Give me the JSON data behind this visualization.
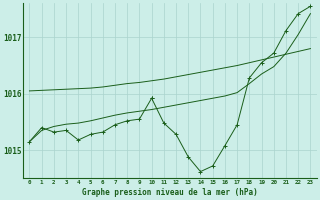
{
  "bg_color": "#cceee8",
  "grid_color": "#aad4ce",
  "line_color": "#1a5e1a",
  "title": "Graphe pression niveau de la mer (hPa)",
  "ylabel_values": [
    1015,
    1016,
    1017
  ],
  "xlim": [
    -0.5,
    23.5
  ],
  "ylim": [
    1014.5,
    1017.6
  ],
  "hours": [
    0,
    1,
    2,
    3,
    4,
    5,
    6,
    7,
    8,
    9,
    10,
    11,
    12,
    13,
    14,
    15,
    16,
    17,
    18,
    19,
    20,
    21,
    22,
    23
  ],
  "series1": [
    1015.15,
    1015.4,
    1015.32,
    1015.35,
    1015.18,
    1015.28,
    1015.32,
    1015.45,
    1015.52,
    1015.55,
    1015.92,
    null,
    null,
    null,
    null,
    null,
    null,
    null,
    null,
    null,
    null,
    null,
    null,
    null
  ],
  "series2": [
    null,
    null,
    null,
    null,
    null,
    null,
    null,
    null,
    null,
    null,
    1015.92,
    1015.48,
    1015.28,
    1014.88,
    1014.62,
    1014.72,
    1015.08,
    1015.45,
    1016.28,
    1016.55,
    1016.72,
    1017.12,
    1017.42,
    1017.55
  ],
  "series3": [
    1016.05,
    1016.06,
    1016.07,
    1016.08,
    1016.09,
    1016.1,
    1016.12,
    1016.15,
    1016.18,
    1016.2,
    1016.23,
    1016.26,
    1016.3,
    1016.34,
    1016.38,
    1016.42,
    1016.46,
    1016.5,
    1016.55,
    1016.6,
    1016.65,
    1016.7,
    1016.75,
    1016.8
  ],
  "series4": [
    1015.15,
    1015.35,
    1015.42,
    1015.46,
    1015.48,
    1015.52,
    1015.57,
    1015.62,
    1015.66,
    1015.69,
    1015.72,
    1015.76,
    1015.8,
    1015.84,
    1015.88,
    1015.92,
    1015.96,
    1016.02,
    1016.18,
    1016.35,
    1016.48,
    1016.72,
    1017.05,
    1017.42
  ]
}
